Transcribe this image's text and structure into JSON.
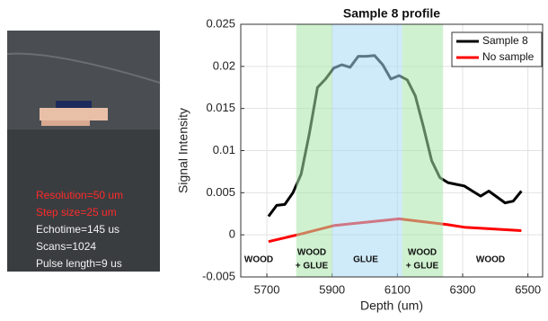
{
  "photo": {
    "lines": [
      {
        "text": "Resolution=50 um",
        "color": "#ff2a2a"
      },
      {
        "text": "Step size=25 um",
        "color": "#ff2a2a"
      },
      {
        "text": "Echotime=145 us",
        "color": "#f2f2f2"
      },
      {
        "text": "Scans=1024",
        "color": "#f2f2f2"
      },
      {
        "text": "Pulse length=9 us",
        "color": "#f2f2f2"
      }
    ]
  },
  "chart_data": {
    "type": "line",
    "title": "Sample 8 profile",
    "x_label": "Depth (um)",
    "y_label": "Signal Intensity",
    "xlim": [
      5620,
      6545
    ],
    "ylim": [
      -0.005,
      0.025
    ],
    "xticks": [
      5700,
      5900,
      6100,
      6300,
      6500
    ],
    "yticks": [
      -0.005,
      0,
      0.005,
      0.01,
      0.015,
      0.02,
      0.025
    ],
    "grid": true,
    "legend": "northeast",
    "regions": [
      {
        "x0": 5790,
        "x1": 5900,
        "color": "#a8e6a8"
      },
      {
        "x0": 5900,
        "x1": 6115,
        "color": "#a8d8f2"
      },
      {
        "x0": 6115,
        "x1": 6240,
        "color": "#a8e6a8"
      }
    ],
    "annotations": [
      [
        "WOOD"
      ],
      [
        "WOOD",
        "+ GLUE"
      ],
      [
        "GLUE"
      ],
      [
        "WOOD",
        "+ GLUE"
      ],
      [
        "WOOD"
      ]
    ],
    "series": [
      {
        "name": "Sample 8",
        "color": "#000000",
        "x": [
          5705,
          5730,
          5755,
          5780,
          5805,
          5830,
          5855,
          5880,
          5905,
          5930,
          5955,
          5980,
          6005,
          6030,
          6055,
          6080,
          6105,
          6130,
          6155,
          6180,
          6205,
          6230,
          6255,
          6280,
          6305,
          6330,
          6355,
          6380,
          6405,
          6430,
          6455,
          6480
        ],
        "values": [
          0.0022,
          0.0035,
          0.0036,
          0.005,
          0.0072,
          0.012,
          0.0175,
          0.0185,
          0.0198,
          0.0202,
          0.0199,
          0.0212,
          0.0212,
          0.0213,
          0.0202,
          0.0185,
          0.0189,
          0.0184,
          0.0165,
          0.0128,
          0.0088,
          0.0068,
          0.0062,
          0.006,
          0.0058,
          0.0052,
          0.0046,
          0.0052,
          0.0045,
          0.0038,
          0.004,
          0.0052
        ]
      },
      {
        "name": "No sample",
        "color": "#ff0000",
        "x": [
          5705,
          5805,
          5905,
          6105,
          6255,
          6305,
          6480
        ],
        "values": [
          -0.0008,
          0.0001,
          0.0011,
          0.0019,
          0.0012,
          0.0009,
          0.0005
        ]
      }
    ]
  }
}
